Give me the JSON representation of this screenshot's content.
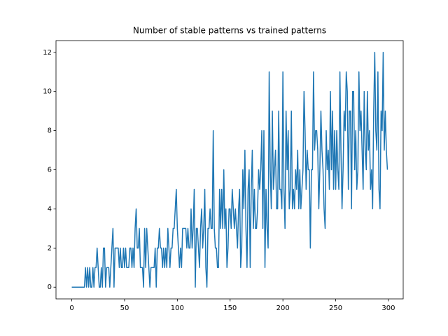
{
  "chart_data": {
    "type": "line",
    "title": "Number of stable patterns vs trained patterns",
    "color": "#1f77b4",
    "values": [
      0,
      0,
      0,
      0,
      0,
      0,
      0,
      0,
      0,
      0,
      0,
      0,
      0,
      1,
      0,
      1,
      0,
      1,
      0,
      0,
      1,
      0,
      1,
      1,
      2,
      1,
      0,
      0,
      1,
      0,
      2,
      2,
      0,
      1,
      1,
      1,
      0,
      1,
      2,
      3,
      0,
      2,
      2,
      2,
      2,
      1,
      2,
      1,
      1,
      2,
      1,
      2,
      1,
      1,
      1,
      2,
      2,
      1,
      2,
      1,
      3,
      4,
      2,
      2,
      3,
      1,
      1,
      1,
      0,
      3,
      1,
      3,
      2,
      1,
      0,
      1,
      1,
      1,
      1,
      2,
      0,
      2,
      2,
      3,
      2,
      2,
      1,
      2,
      1,
      2,
      1,
      3,
      2,
      1,
      2,
      2,
      3,
      3,
      4,
      5,
      3,
      2,
      1,
      2,
      1,
      3,
      3,
      3,
      3,
      2,
      3,
      2,
      2,
      4,
      2,
      3,
      5,
      0,
      3,
      3,
      2,
      1,
      3,
      4,
      2,
      3,
      5,
      1,
      0,
      3,
      3,
      4,
      3,
      3,
      8,
      3,
      2,
      2,
      1,
      1,
      5,
      3,
      5,
      3,
      6,
      3,
      4,
      1,
      2,
      4,
      4,
      3,
      5,
      4,
      3,
      4,
      3,
      2,
      4,
      5,
      1,
      2,
      6,
      4,
      7,
      3,
      1,
      5,
      6,
      1,
      5,
      7,
      3,
      5,
      3,
      3,
      4,
      6,
      5,
      6,
      8,
      3,
      8,
      1,
      5,
      3,
      2,
      11,
      6,
      4,
      9,
      5,
      6,
      7,
      4,
      4,
      9,
      5,
      5,
      4,
      11,
      5,
      3,
      9,
      6,
      8,
      4,
      5,
      9,
      4,
      5,
      4,
      6,
      5,
      7,
      4,
      6,
      4,
      5,
      6,
      10,
      8,
      5,
      7,
      6,
      6,
      2,
      6,
      6,
      11,
      7,
      8,
      8,
      7,
      4,
      6,
      9,
      7,
      6,
      4,
      3,
      8,
      6,
      7,
      5,
      10,
      6,
      9,
      5,
      8,
      5,
      8,
      6,
      5,
      11,
      7,
      4,
      6,
      9,
      8,
      11,
      10,
      5,
      9,
      9,
      4,
      10,
      10,
      6,
      8,
      5,
      6,
      11,
      8,
      9,
      7,
      5,
      10,
      7,
      6,
      10,
      7,
      8,
      5,
      6,
      4,
      9,
      12,
      8,
      7,
      11,
      5,
      4,
      9,
      8,
      12,
      7,
      9,
      7,
      6
    ],
    "xlim": [
      -14.95,
      313.95
    ],
    "xticks": [
      0,
      50,
      100,
      150,
      200,
      250,
      300
    ],
    "ylim": [
      -0.6,
      12.6
    ],
    "yticks": [
      0,
      2,
      4,
      6,
      8,
      10,
      12
    ]
  }
}
